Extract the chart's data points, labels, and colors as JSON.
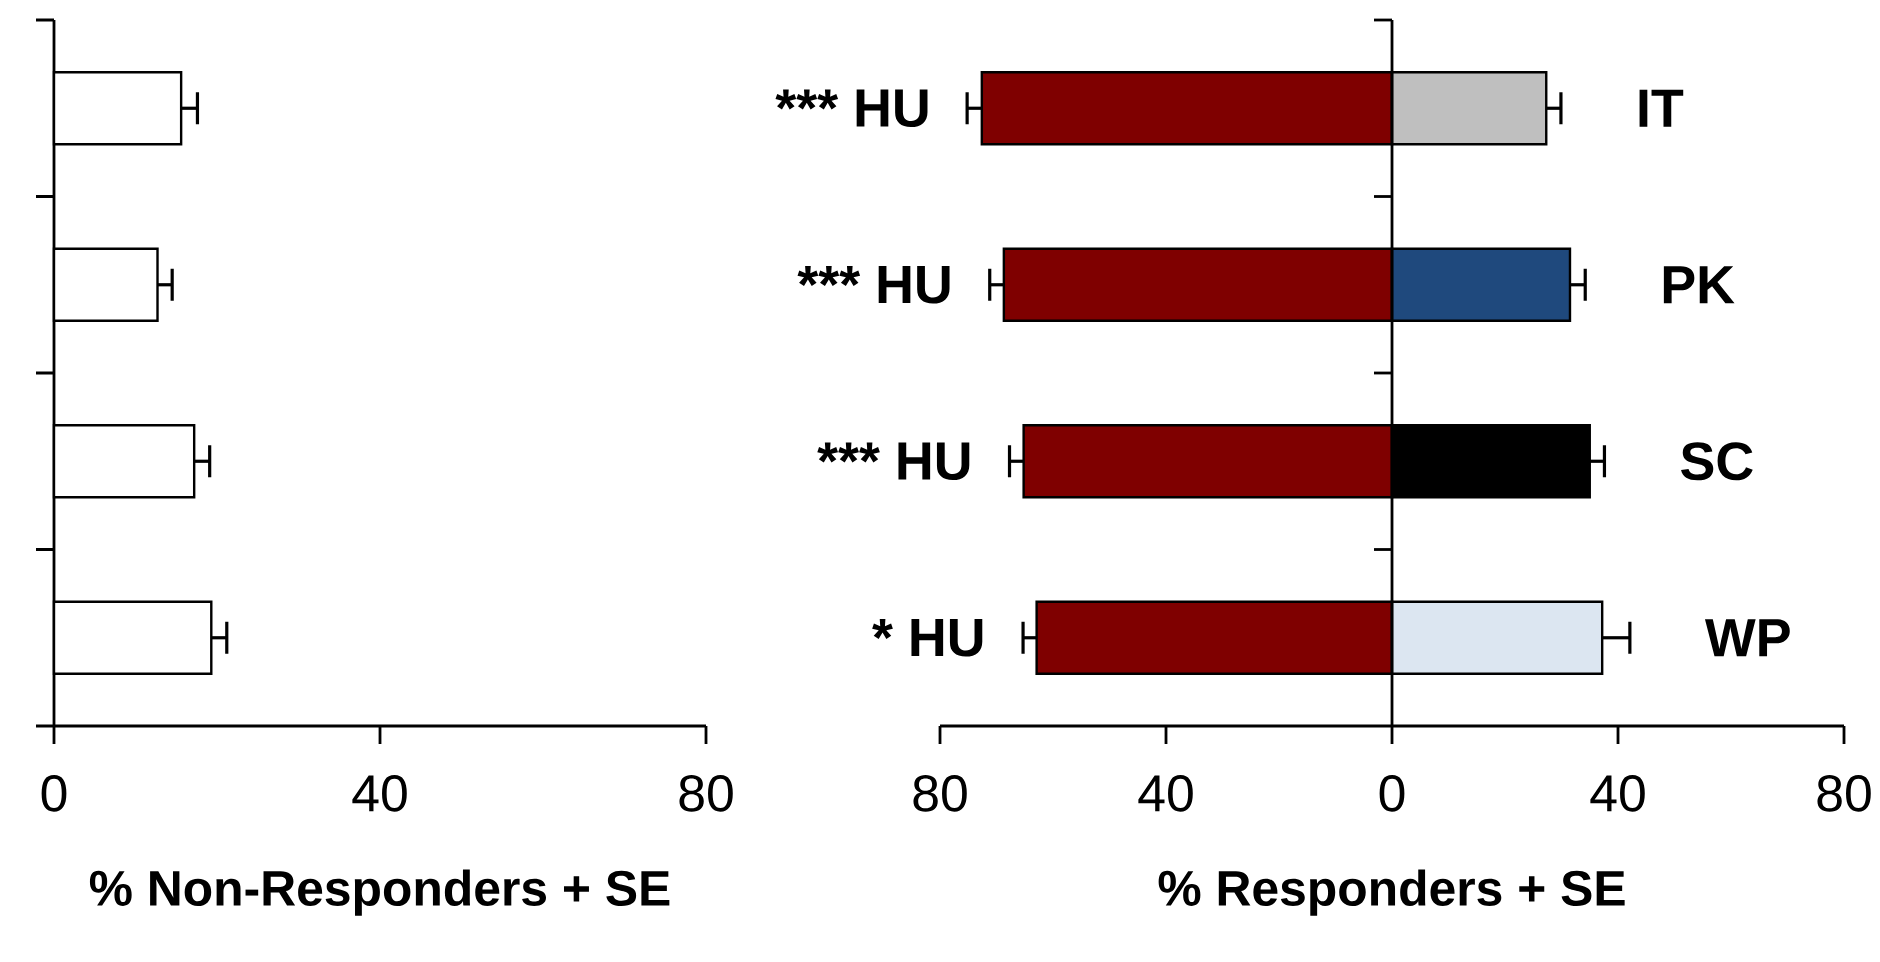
{
  "chart_data": [
    {
      "type": "bar",
      "orientation": "horizontal",
      "xlabel": "% Non-Responders + SE",
      "categories": [
        null,
        null,
        null,
        null
      ],
      "color": "#ffffff",
      "values": [
        15.6,
        12.7,
        17.2,
        19.3
      ],
      "errors": [
        [
          15.6,
          17.6
        ],
        [
          12.7,
          14.5
        ],
        [
          17.2,
          19.1
        ],
        [
          19.3,
          21.2
        ]
      ],
      "xlim": [
        0,
        80
      ],
      "xticks": [
        0,
        40,
        80
      ]
    },
    {
      "type": "bar",
      "orientation": "horizontal",
      "stacked": true,
      "xlabel": "% Responders + SE",
      "categories": [
        "IT",
        "PK",
        "SC",
        "WP"
      ],
      "series": [
        {
          "name": "HU",
          "color": "#7f0000",
          "values": [
            -72.6,
            -68.7,
            -65.2,
            -62.9
          ],
          "errors": [
            [
              -75.2,
              -72.6
            ],
            [
              -71.2,
              -68.7
            ],
            [
              -67.7,
              -65.2
            ],
            [
              -65.3,
              -62.9
            ]
          ]
        },
        {
          "colors": [
            "#bfbfbf",
            "#1f497d",
            "#000000",
            "#dce6f1"
          ],
          "values": [
            27.3,
            31.5,
            35.0,
            37.2
          ],
          "errors": [
            [
              27.3,
              29.9
            ],
            [
              31.5,
              34.2
            ],
            [
              35.0,
              37.6
            ],
            [
              37.2,
              42.1
            ]
          ]
        }
      ],
      "annotations": [
        {
          "text": "***",
          "x": -72.6,
          "y": "IT"
        },
        {
          "text": "***",
          "x": -68.7,
          "y": "PK"
        },
        {
          "text": "***",
          "x": -65.2,
          "y": "SC"
        },
        {
          "text": "*",
          "x": -62.9,
          "y": "WP"
        }
      ],
      "xlim": [
        -80,
        80
      ],
      "xticks": [
        {
          "value": -80,
          "label": "80"
        },
        {
          "value": -40,
          "label": "40"
        },
        0,
        40,
        80
      ]
    }
  ]
}
